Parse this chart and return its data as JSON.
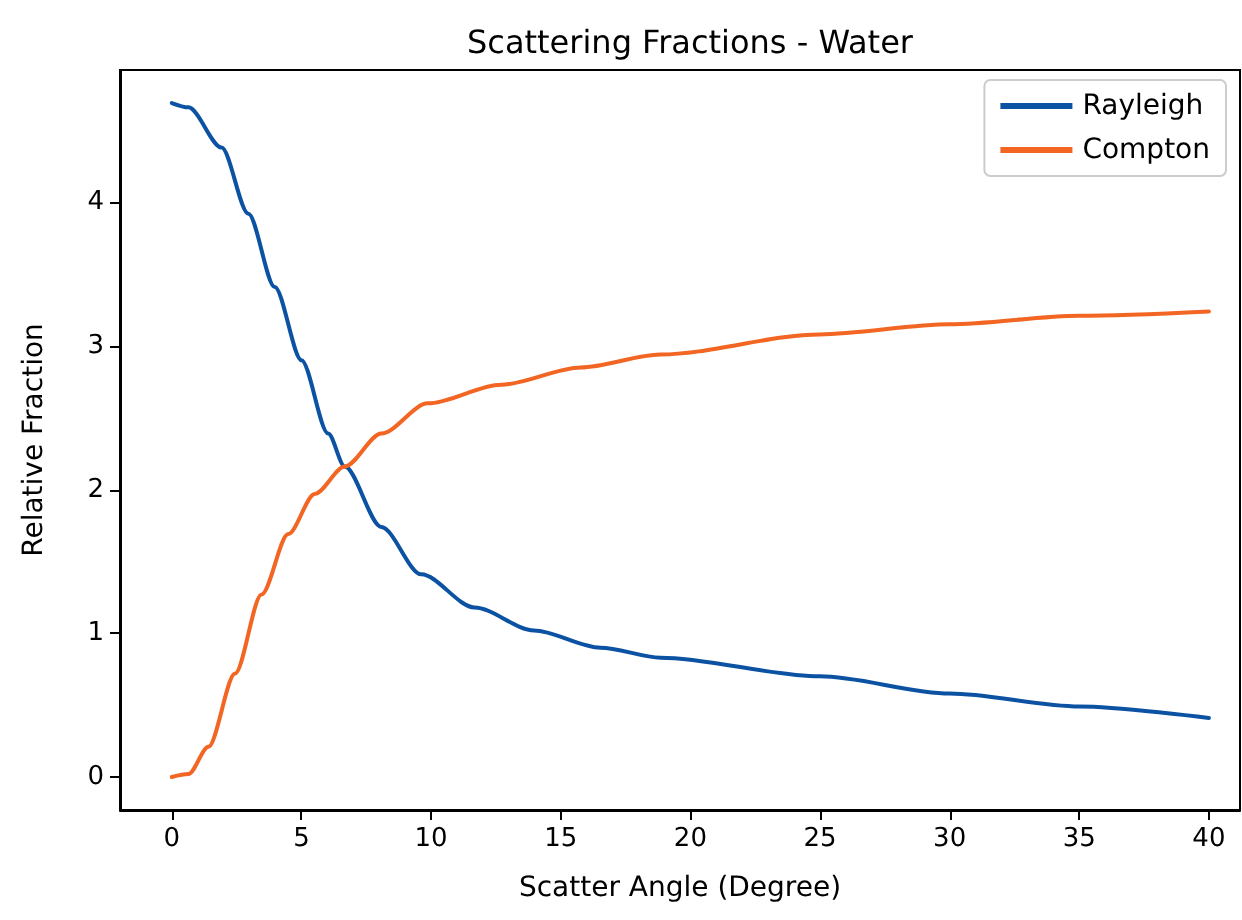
{
  "chart_data": {
    "type": "line",
    "title": "Scattering Fractions - Water",
    "xlabel": "Scatter Angle (Degree)",
    "ylabel": "Relative Fraction",
    "xlim": [
      -2,
      41.2
    ],
    "xticks": [
      0,
      5,
      10,
      15,
      20,
      25,
      30,
      35,
      40
    ],
    "ylim": [
      -0.23,
      4.92
    ],
    "yticks": [
      0,
      1,
      2,
      3,
      4
    ],
    "grid": false,
    "legend": "top right",
    "marker": "none",
    "line_style": "solid",
    "series": [
      {
        "name": "Rayleigh",
        "color": "#0c52a3",
        "x": [
          0,
          0.64,
          1.92,
          2.95,
          3.97,
          5.0,
          6.03,
          6.67,
          8.08,
          9.62,
          11.67,
          13.97,
          16.54,
          18.85,
          25,
          30,
          35,
          40
        ],
        "values": [
          4.69,
          4.66,
          4.38,
          3.92,
          3.41,
          2.9,
          2.39,
          2.16,
          1.74,
          1.41,
          1.18,
          1.02,
          0.9,
          0.83,
          0.7,
          0.58,
          0.49,
          0.41
        ]
      },
      {
        "name": "Compton",
        "color": "#f26522",
        "x": [
          0,
          0.64,
          1.41,
          2.44,
          3.46,
          4.49,
          5.51,
          6.67,
          8.08,
          9.87,
          12.7,
          15.77,
          18.85,
          25,
          30,
          35,
          40
        ],
        "values": [
          0,
          0.02,
          0.21,
          0.72,
          1.27,
          1.69,
          1.97,
          2.16,
          2.39,
          2.6,
          2.73,
          2.85,
          2.94,
          3.08,
          3.15,
          3.21,
          3.24
        ]
      }
    ]
  }
}
